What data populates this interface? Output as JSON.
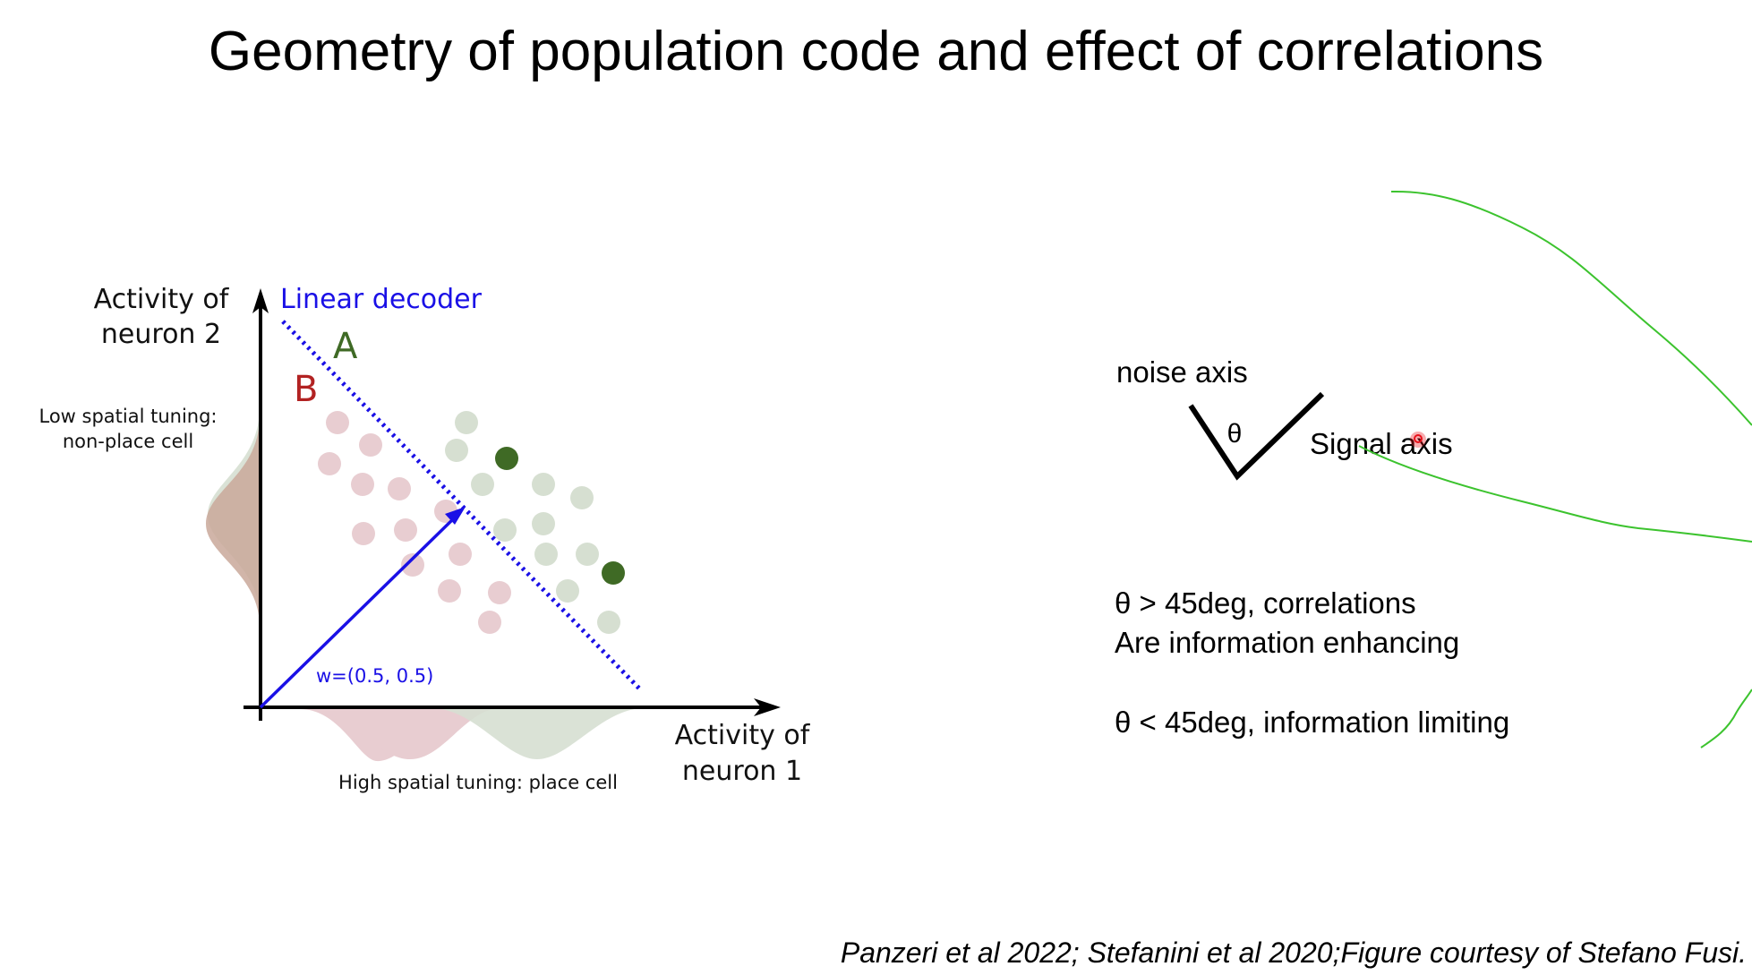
{
  "slide": {
    "title": "Geometry of population code and effect of correlations",
    "citation": "Panzeri et al 2022; Stefanini et al 2020;Figure courtesy of Stefano Fusi."
  },
  "diagram": {
    "y_axis_label_line1": "Activity of",
    "y_axis_label_line2": "neuron 2",
    "x_axis_label_line1": "Activity of",
    "x_axis_label_line2": "neuron 1",
    "decoder_label": "Linear decoder",
    "class_a_label": "A",
    "class_b_label": "B",
    "weight_label": "w=(0.5, 0.5)",
    "left_dist_label_line1": "Low spatial tuning:",
    "left_dist_label_line2": "non-place cell",
    "bottom_dist_label": "High spatial tuning: place cell",
    "colors": {
      "decoder": "#1a10e6",
      "class_a": "#3f6a25",
      "class_b": "#b22222",
      "class_a_points": "#d6dfd1",
      "class_b_points": "#e8cdd1",
      "highlight_a": "#3f6a25"
    }
  },
  "annotation": {
    "noise_axis_label": "noise axis",
    "signal_axis_label": "Signal axis",
    "theta_symbol": "θ",
    "rule1_line1": "θ > 45deg, correlations",
    "rule1_line2": "Are information enhancing",
    "rule2": "θ < 45deg, information limiting",
    "pen_color": "#3cc32e",
    "pointer_color": "#e8101a"
  }
}
